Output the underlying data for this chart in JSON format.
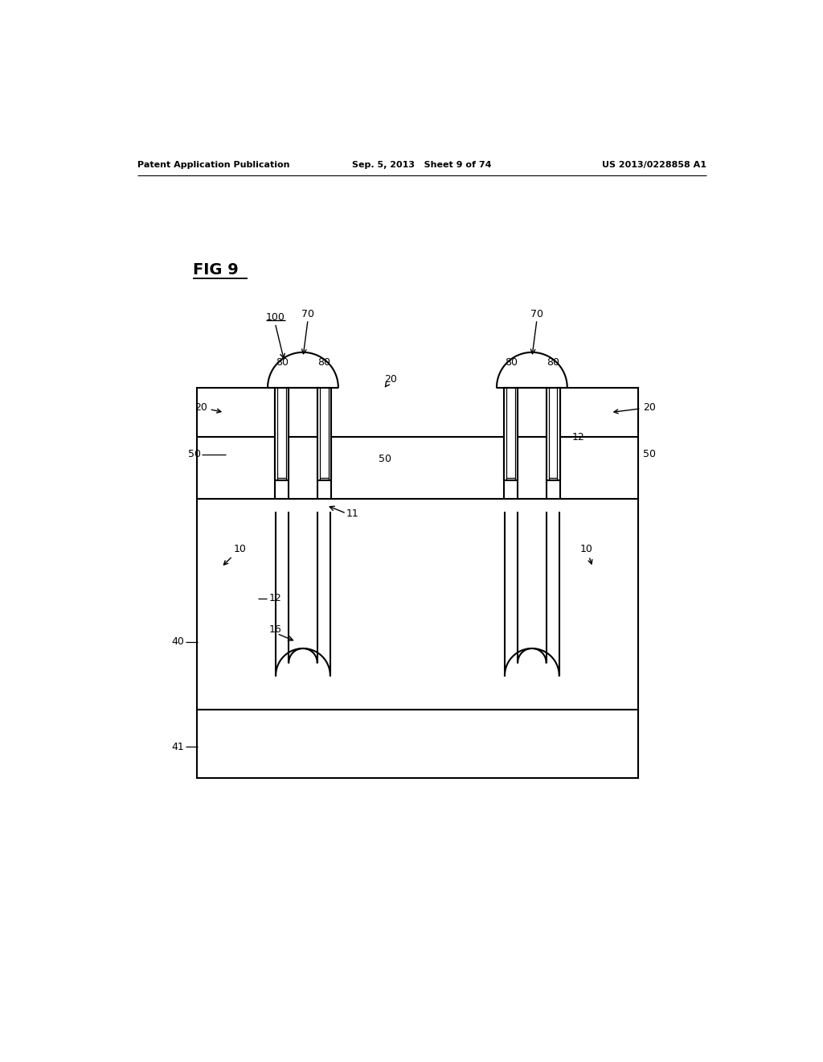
{
  "header_left": "Patent Application Publication",
  "header_center": "Sep. 5, 2013   Sheet 9 of 74",
  "header_right": "US 2013/0228858 A1",
  "fig_title": "FIG 9",
  "bg_color": "#ffffff"
}
